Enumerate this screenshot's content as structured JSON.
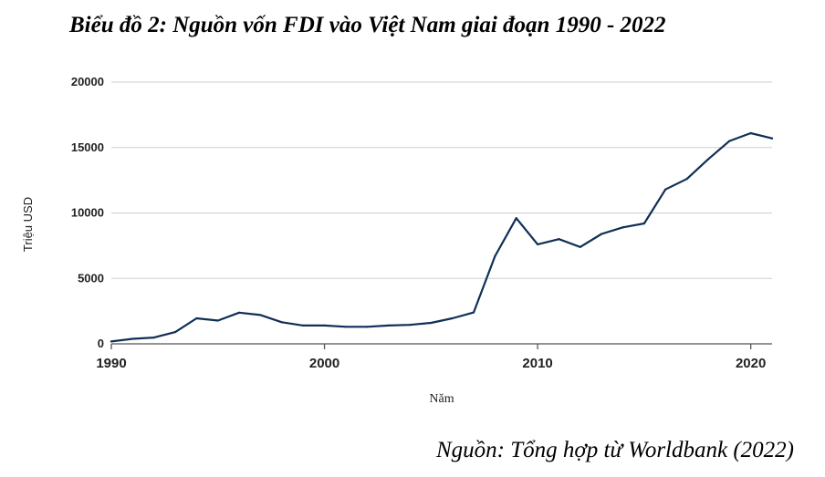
{
  "title": "Biểu đồ 2: Nguồn vốn FDI vào Việt Nam giai đoạn 1990 - 2022",
  "source": "Nguồn: Tổng hợp từ Worldbank (2022)",
  "colors": {
    "line": "#0f2f57",
    "grid": "#cfcfcf",
    "axis": "#555555"
  },
  "chart_data": {
    "type": "line",
    "xlabel": "Năm",
    "ylabel": "Triệu USD",
    "xlim": [
      1990,
      2021
    ],
    "ylim": [
      0,
      20000
    ],
    "x_ticks": [
      1990,
      2000,
      2010,
      2020
    ],
    "y_ticks": [
      0,
      5000,
      10000,
      15000,
      20000
    ],
    "grid": true,
    "series": [
      {
        "x": [
          1990,
          1991,
          1992,
          1993,
          1994,
          1995,
          1996,
          1997,
          1998,
          1999,
          2000,
          2001,
          2002,
          2003,
          2004,
          2005,
          2006,
          2007,
          2008,
          2009,
          2010,
          2011,
          2012,
          2013,
          2014,
          2015,
          2016,
          2017,
          2018,
          2019,
          2020,
          2021
        ],
        "values": [
          180,
          380,
          480,
          900,
          1950,
          1780,
          2380,
          2200,
          1650,
          1400,
          1400,
          1300,
          1300,
          1400,
          1450,
          1600,
          1950,
          2400,
          6700,
          9600,
          7600,
          8000,
          7400,
          8400,
          8900,
          9200,
          11800,
          12600,
          14100,
          15500,
          16100,
          15700
        ]
      }
    ]
  }
}
